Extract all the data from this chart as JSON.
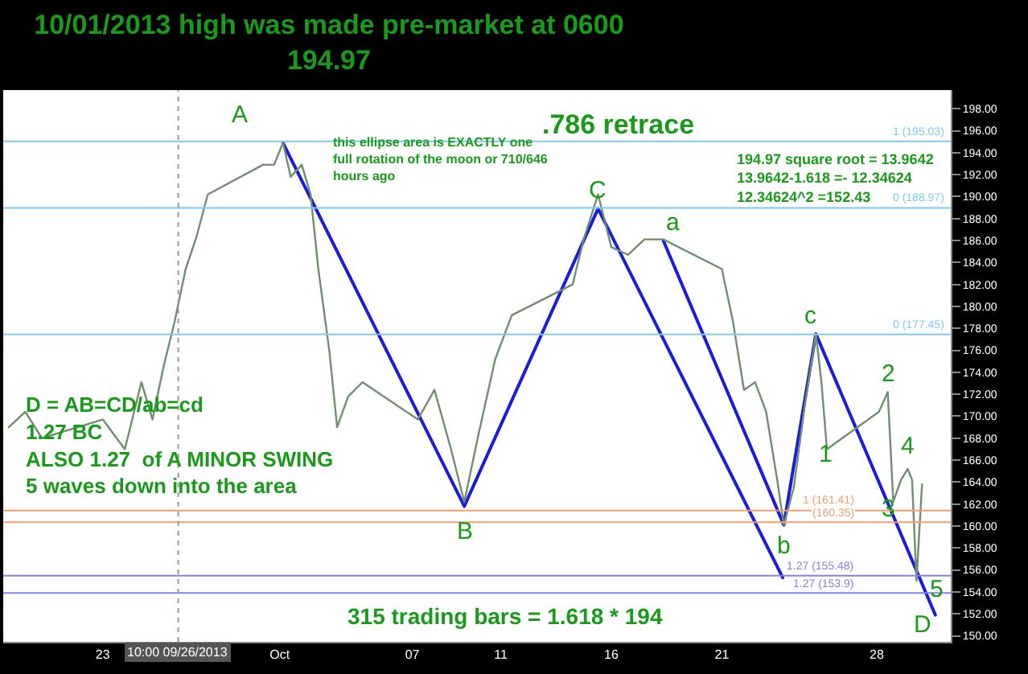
{
  "chart_data": {
    "type": "line",
    "title": "10/01/2013 high was made pre-market at 0600",
    "subtitle": "194.97",
    "x": [
      "2013-09-18T18:00",
      "2013-09-19T12:00",
      "2013-09-20T06:00",
      "2013-09-23T00:00",
      "2013-09-24T00:00",
      "2013-09-24T18:00",
      "2013-09-25T06:00",
      "2013-09-25T18:00",
      "2013-09-26T06:00",
      "2013-09-26T18:00",
      "2013-09-27T06:00",
      "2013-09-27T18:00",
      "2013-09-30T06:00",
      "2013-09-30T18:00",
      "2013-10-01T03:36",
      "2013-10-01T12:00",
      "2013-10-02T00:00",
      "2013-10-02T09:36",
      "2013-10-02T18:00",
      "2013-10-03T06:00",
      "2013-10-03T14:24",
      "2013-10-04T02:24",
      "2013-10-04T18:00",
      "2013-10-07T06:00",
      "2013-10-08T00:00",
      "2013-10-08T18:00",
      "2013-10-09T08:24",
      "2013-10-10T00:00",
      "2013-10-10T18:00",
      "2013-10-11T12:00",
      "2013-10-14T06:00",
      "2013-10-14T18:00",
      "2013-10-15T09:36",
      "2013-10-16T00:00",
      "2013-10-16T18:00",
      "2013-10-17T12:00",
      "2013-10-18T08:24",
      "2013-10-21T00:00",
      "2013-10-21T12:00",
      "2013-10-22T00:00",
      "2013-10-22T12:00",
      "2013-10-23T00:00",
      "2013-10-23T12:00",
      "2013-10-23T19:12",
      "2013-10-24T06:00",
      "2013-10-24T18:00",
      "2013-10-25T06:00",
      "2013-10-25T12:00",
      "2013-10-25T18:00",
      "2013-10-28T02:24",
      "2013-10-28T12:00",
      "2013-10-28T18:00",
      "2013-10-29T02:24",
      "2013-10-29T09:36",
      "2013-10-29T14:24",
      "2013-10-29T19:12",
      "2013-10-30T01:12"
    ],
    "series": [
      {
        "color": "#6f8f6f",
        "values": [
          169.0,
          170.4,
          168.0,
          169.7,
          167.0,
          173.1,
          169.7,
          174.5,
          178.6,
          183.4,
          186.4,
          190.2,
          192.9,
          192.9,
          194.9,
          191.8,
          192.9,
          190.2,
          183.4,
          175.9,
          169.0,
          171.8,
          173.1,
          169.7,
          172.4,
          167.0,
          162.2,
          168.4,
          175.2,
          179.2,
          182.0,
          186.1,
          190.2,
          185.4,
          184.7,
          186.1,
          186.1,
          183.4,
          178.6,
          172.4,
          173.1,
          170.4,
          164.2,
          160.1,
          163.5,
          171.0,
          177.5,
          173.1,
          167.0,
          170.4,
          172.2,
          162.2,
          164.2,
          165.2,
          164.2,
          155.0,
          163.8
        ]
      },
      {
        "color": "#1a1ae0",
        "x": [
          "2013-10-01T03:36",
          "2013-10-09T08:24",
          "2013-10-15T09:36",
          "2013-10-23T18:00"
        ],
        "values": [
          194.9,
          161.8,
          188.9,
          155.3
        ]
      },
      {
        "color": "#1a1ae0",
        "x": [
          "2013-10-18T08:24",
          "2013-10-23T19:12",
          "2013-10-25T06:00",
          "2013-10-30T15:36"
        ],
        "values": [
          186.0,
          160.1,
          177.5,
          151.9
        ]
      }
    ],
    "xlim": [
      "2013-09-18T12:00",
      "2013-10-31T08:24"
    ],
    "xticks": [
      {
        "value": "2013-09-23",
        "label": "23"
      },
      {
        "value": "2013-10-01",
        "label": "Oct"
      },
      {
        "value": "2013-10-07",
        "label": "07"
      },
      {
        "value": "2013-10-11",
        "label": "11"
      },
      {
        "value": "2013-10-16",
        "label": "16"
      },
      {
        "value": "2013-10-21",
        "label": "21"
      },
      {
        "value": "2013-10-28",
        "label": "28"
      }
    ],
    "ylim": [
      149.45,
      199.7
    ],
    "yticks": [
      {
        "value": 150,
        "label": "150.00"
      },
      {
        "value": 152,
        "label": "152.00"
      },
      {
        "value": 154,
        "label": "154.00"
      },
      {
        "value": 156,
        "label": "156.00"
      },
      {
        "value": 158,
        "label": "158.00"
      },
      {
        "value": 160,
        "label": "160.00"
      },
      {
        "value": 162,
        "label": "162.00"
      },
      {
        "value": 164,
        "label": "164.00"
      },
      {
        "value": 166,
        "label": "166.00"
      },
      {
        "value": 168,
        "label": "168.00"
      },
      {
        "value": 170,
        "label": "170.00"
      },
      {
        "value": 172,
        "label": "172.00"
      },
      {
        "value": 174,
        "label": "174.00"
      },
      {
        "value": 176,
        "label": "176.00"
      },
      {
        "value": 178,
        "label": "178.00"
      },
      {
        "value": 180,
        "label": "180.00"
      },
      {
        "value": 182,
        "label": "182.00"
      },
      {
        "value": 184,
        "label": "184.00"
      },
      {
        "value": 186,
        "label": "186.00"
      },
      {
        "value": 188,
        "label": "188.00"
      },
      {
        "value": 190,
        "label": "190.00"
      },
      {
        "value": 192,
        "label": "192.00"
      },
      {
        "value": 194,
        "label": "194.00"
      },
      {
        "value": 196,
        "label": "196.00"
      },
      {
        "value": 198,
        "label": "198.00"
      }
    ],
    "ref_lines": [
      {
        "axis": "y",
        "value": 195.03,
        "label": "1 (195.03)",
        "color": "#80c8f0",
        "line_style": "solid"
      },
      {
        "axis": "y",
        "value": 188.97,
        "label": "0 (188.97)",
        "color": "#80c8f0",
        "line_style": "solid"
      },
      {
        "axis": "y",
        "value": 177.45,
        "label": "0 (177.45)",
        "color": "#80c8f0",
        "line_style": "solid"
      },
      {
        "axis": "y",
        "value": 161.41,
        "label": "1 (161.41)",
        "color": "#f0a070",
        "line_style": "solid"
      },
      {
        "axis": "y",
        "value": 160.35,
        "label": "(160.35)",
        "color": "#f0a070",
        "line_style": "solid"
      },
      {
        "axis": "y",
        "value": 155.48,
        "label": "1.27 (155.48)",
        "color": "#8080f0",
        "line_style": "solid"
      },
      {
        "axis": "y",
        "value": 153.9,
        "label": "1.27 (153.9)",
        "color": "#8080f0",
        "line_style": "solid"
      },
      {
        "axis": "x",
        "value": "2013-09-26T10:00",
        "label": "10:00 09/26/2013",
        "color": "#999999",
        "line_style": "dotted"
      }
    ],
    "annotations": [
      {
        "text": "C",
        "x": "2013-10-15T09:36",
        "y": 190.6
      },
      {
        "text": "1",
        "x": "2013-10-25T15:36",
        "y": 166.5
      },
      {
        "text": "3",
        "x": "2013-10-28T12:00",
        "y": 161.6
      },
      "A",
      "B",
      "a",
      "b",
      "c",
      "2",
      "4",
      "5",
      "D",
      ".786 retrace",
      "this ellipse area is EXACTLY one\nfull rotation of the moon or 710/646\nhours ago",
      "194.97 square root = 13.9642\n13.9642-1.618 =- 12.34624\n12.34624^2 =152.43",
      "D = AB=CD/ab=cd\n1.27 BC\nALSO 1.27  of A MINOR SWING\n5 waves down into the area",
      "315 trading bars = 1.618 * 194"
    ],
    "marker": "none",
    "line_style": "solid"
  }
}
